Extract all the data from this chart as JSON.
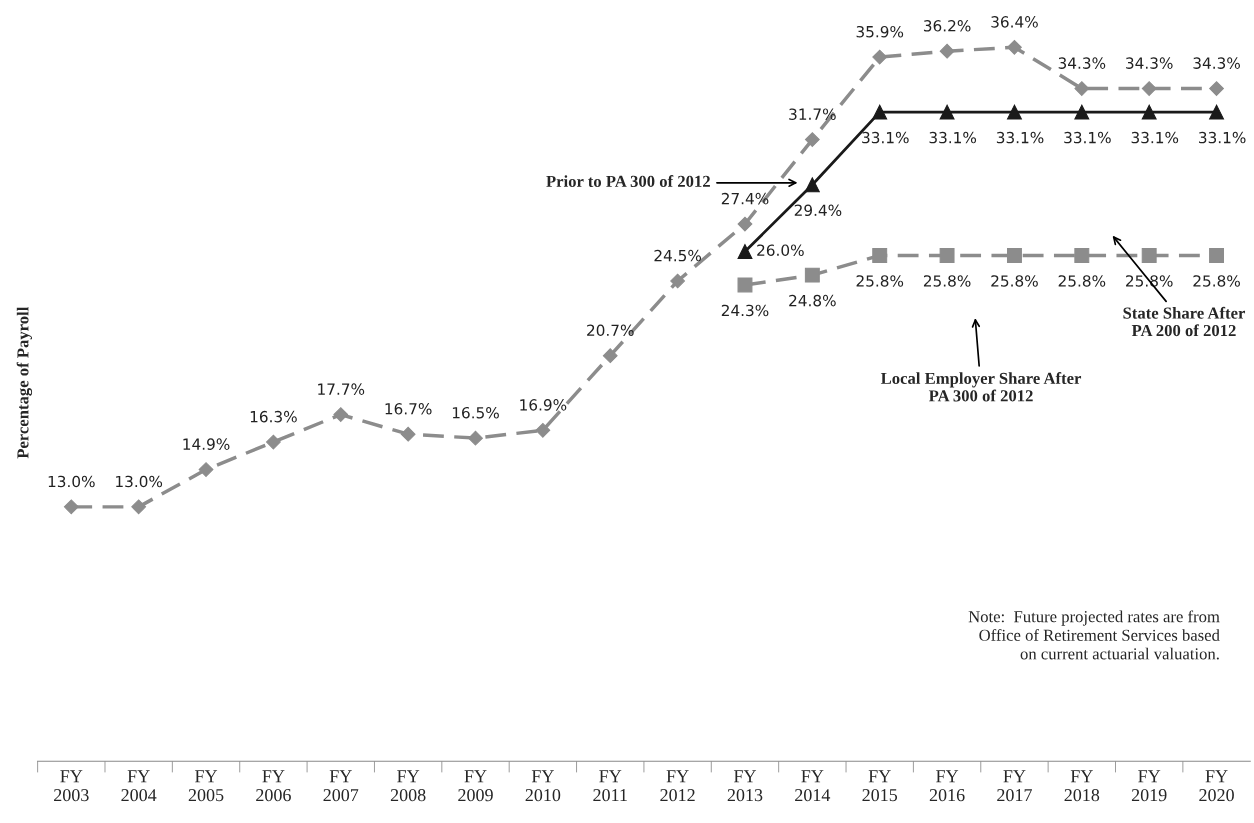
{
  "chart_data": {
    "type": "line",
    "ylabel": "Percentage of Payroll",
    "categories": [
      "FY\n2003",
      "FY\n2004",
      "FY\n2005",
      "FY\n2006",
      "FY\n2007",
      "FY\n2008",
      "FY\n2009",
      "FY\n2010",
      "FY\n2011",
      "FY\n2012",
      "FY\n2013",
      "FY\n2014",
      "FY\n2015",
      "FY\n2016",
      "FY\n2017",
      "FY\n2018",
      "FY\n2019",
      "FY\n2020"
    ],
    "tick_labels": "x",
    "grid": false,
    "legend": false,
    "series": [
      {
        "color": "#8c8c8c",
        "marker": "diamond",
        "line_style": "dashed",
        "values": [
          13.0,
          13.0,
          14.9,
          16.3,
          17.7,
          16.7,
          16.5,
          16.9,
          20.7,
          24.5,
          27.4,
          31.7,
          35.9,
          36.2,
          36.4,
          34.3,
          34.3,
          34.3
        ],
        "value_labels": [
          "13.0%",
          "13.0%",
          "14.9%",
          "16.3%",
          "17.7%",
          "16.7%",
          "16.5%",
          "16.9%",
          "20.7%",
          "24.5%",
          "27.4%",
          "31.7%",
          "35.9%",
          "36.2%",
          "36.4%",
          "34.3%",
          "34.3%",
          "34.3%"
        ]
      },
      {
        "color": "#1a1a1a",
        "marker": "triangle",
        "line_style": "solid",
        "values": [
          null,
          null,
          null,
          null,
          null,
          null,
          null,
          null,
          null,
          null,
          26.0,
          29.4,
          33.1,
          33.1,
          33.1,
          33.1,
          33.1,
          33.1
        ],
        "value_labels": [
          null,
          null,
          null,
          null,
          null,
          null,
          null,
          null,
          null,
          null,
          "26.0%",
          "29.4%",
          "33.1%",
          "33.1%",
          "33.1%",
          "33.1%",
          "33.1%",
          "33.1%"
        ]
      },
      {
        "color": "#8c8c8c",
        "marker": "square",
        "line_style": "dashed",
        "values": [
          null,
          null,
          null,
          null,
          null,
          null,
          null,
          null,
          null,
          null,
          24.3,
          24.8,
          25.8,
          25.8,
          25.8,
          25.8,
          25.8,
          25.8
        ],
        "value_labels": [
          null,
          null,
          null,
          null,
          null,
          null,
          null,
          null,
          null,
          null,
          "24.3%",
          "24.8%",
          "25.8%",
          "25.8%",
          "25.8%",
          "25.8%",
          "25.8%",
          "25.8%"
        ]
      }
    ],
    "annotations": [
      "Prior to PA 300 of 2012",
      "Local Employer Share After\nPA 300 of 2012",
      "State Share After\nPA 200 of 2012",
      "Note:  Future projected rates are from\nOffice of Retirement Services based\non current actuarial valuation."
    ]
  }
}
